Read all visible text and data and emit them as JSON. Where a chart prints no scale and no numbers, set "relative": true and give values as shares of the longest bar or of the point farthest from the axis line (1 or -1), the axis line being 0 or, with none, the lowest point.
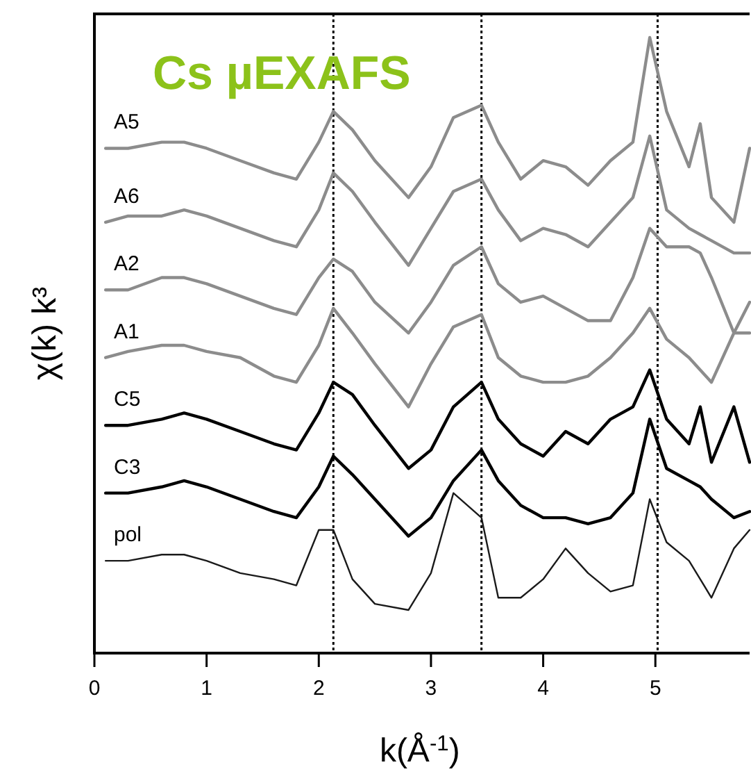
{
  "chart_data": {
    "type": "line",
    "title": "Cs µEXAFS",
    "xlabel": "k(Å$^{-1}$)",
    "ylabel": "χ(k) k³",
    "relative": true,
    "grid": false,
    "marker": "none",
    "line_style": "solid",
    "x": [
      0.1,
      0.3,
      0.6,
      0.8,
      1.0,
      1.3,
      1.6,
      1.8,
      2.0,
      2.13,
      2.3,
      2.5,
      2.8,
      3.0,
      3.2,
      3.45,
      3.6,
      3.8,
      4.0,
      4.2,
      4.4,
      4.6,
      4.8,
      4.95,
      5.1,
      5.3,
      5.4,
      5.5,
      5.7,
      5.84
    ],
    "xlim": [
      0,
      5.84
    ],
    "xticks": [
      0,
      1,
      2,
      3,
      4,
      5
    ],
    "ref_lines": [
      {
        "axis": "x",
        "value": 2.13,
        "line_style": "dotted",
        "color": "#000000"
      },
      {
        "axis": "x",
        "value": 3.45,
        "line_style": "dotted",
        "color": "#000000"
      },
      {
        "axis": "x",
        "value": 5.02,
        "line_style": "dotted",
        "color": "#000000"
      }
    ],
    "series": [
      {
        "name": "A5",
        "color": "#8c8c8c",
        "values": [
          0.82,
          0.82,
          0.83,
          0.83,
          0.82,
          0.8,
          0.78,
          0.77,
          0.83,
          0.88,
          0.85,
          0.8,
          0.74,
          0.79,
          0.87,
          0.89,
          0.83,
          0.77,
          0.8,
          0.79,
          0.76,
          0.8,
          0.83,
          1,
          0.88,
          0.79,
          0.86,
          0.74,
          0.7,
          0.82
        ]
      },
      {
        "name": "A6",
        "color": "#8c8c8c",
        "values": [
          0.7,
          0.71,
          0.71,
          0.72,
          0.71,
          0.69,
          0.67,
          0.66,
          0.72,
          0.78,
          0.75,
          0.7,
          0.63,
          0.69,
          0.75,
          0.77,
          0.72,
          0.67,
          0.69,
          0.68,
          0.66,
          0.7,
          0.74,
          0.84,
          0.72,
          0.69,
          0.68,
          0.67,
          0.65,
          0.65
        ]
      },
      {
        "name": "A2",
        "color": "#8c8c8c",
        "values": [
          0.59,
          0.59,
          0.61,
          0.61,
          0.6,
          0.58,
          0.56,
          0.55,
          0.61,
          0.64,
          0.62,
          0.57,
          0.52,
          0.57,
          0.63,
          0.66,
          0.6,
          0.57,
          0.58,
          0.56,
          0.54,
          0.54,
          0.61,
          0.69,
          0.66,
          0.66,
          0.65,
          0.61,
          0.52,
          0.57
        ]
      },
      {
        "name": "A1",
        "color": "#8c8c8c",
        "values": [
          0.48,
          0.49,
          0.5,
          0.5,
          0.49,
          0.48,
          0.45,
          0.44,
          0.5,
          0.56,
          0.52,
          0.47,
          0.4,
          0.47,
          0.53,
          0.55,
          0.48,
          0.45,
          0.44,
          0.44,
          0.45,
          0.48,
          0.52,
          0.56,
          0.51,
          0.48,
          0.46,
          0.44,
          0.52,
          0.52
        ]
      },
      {
        "name": "C5",
        "color": "#000000",
        "values": [
          0.37,
          0.37,
          0.38,
          0.39,
          0.38,
          0.36,
          0.34,
          0.33,
          0.39,
          0.44,
          0.42,
          0.37,
          0.3,
          0.33,
          0.4,
          0.44,
          0.38,
          0.34,
          0.32,
          0.36,
          0.34,
          0.38,
          0.4,
          0.46,
          0.38,
          0.34,
          0.4,
          0.31,
          0.4,
          0.31
        ]
      },
      {
        "name": "C3",
        "color": "#000000",
        "values": [
          0.26,
          0.26,
          0.27,
          0.28,
          0.27,
          0.25,
          0.23,
          0.22,
          0.27,
          0.32,
          0.29,
          0.25,
          0.19,
          0.22,
          0.28,
          0.33,
          0.28,
          0.24,
          0.22,
          0.22,
          0.21,
          0.22,
          0.26,
          0.38,
          0.3,
          0.28,
          0.27,
          0.25,
          0.22,
          0.23
        ]
      },
      {
        "name": "pol",
        "color": "#1a1a1a",
        "values": [
          0.15,
          0.15,
          0.16,
          0.16,
          0.15,
          0.13,
          0.12,
          0.11,
          0.2,
          0.2,
          0.12,
          0.08,
          0.07,
          0.13,
          0.26,
          0.22,
          0.09,
          0.09,
          0.12,
          0.17,
          0.13,
          0.1,
          0.11,
          0.25,
          0.18,
          0.15,
          0.12,
          0.09,
          0.17,
          0.2
        ]
      }
    ]
  }
}
